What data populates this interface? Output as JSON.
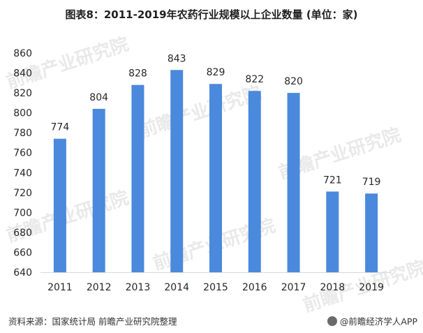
{
  "title": "图表8：2011-2019年农药行业规模以上企业数量 (单位：家)",
  "footer": {
    "source": "资料来源：国家统计局 前瞻产业研究院整理",
    "brand": "@前瞻经济学人APP"
  },
  "watermark": "前瞻产业研究院",
  "colors": {
    "bar": "#4a89dc",
    "grid": "#d9d9d9",
    "text": "#262626"
  },
  "chart_data": {
    "type": "bar",
    "categories": [
      "2011",
      "2012",
      "2013",
      "2014",
      "2015",
      "2016",
      "2017",
      "2018",
      "2019"
    ],
    "values": [
      774,
      804,
      828,
      843,
      829,
      822,
      820,
      721,
      719
    ],
    "ylim": [
      640,
      860
    ],
    "yticks": [
      640,
      660,
      680,
      700,
      720,
      740,
      760,
      780,
      800,
      820,
      840,
      860
    ],
    "data_labels": true,
    "grid": false
  }
}
